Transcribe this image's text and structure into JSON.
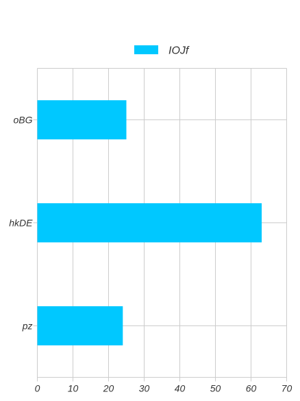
{
  "chart_data": {
    "type": "bar",
    "orientation": "horizontal",
    "categories": [
      "oBG",
      "hkDE",
      "pz"
    ],
    "series": [
      {
        "name": "IOJf",
        "values": [
          25,
          63,
          24
        ]
      }
    ],
    "title": "",
    "xlabel": "",
    "ylabel": "",
    "xlim": [
      0,
      70
    ],
    "xticks": [
      "0",
      "10",
      "20",
      "30",
      "40",
      "50",
      "60",
      "70"
    ],
    "grid": true,
    "legend_position": "top-center",
    "colors": {
      "series": "#00c8ff",
      "grid": "#cccccc",
      "text": "#333333"
    }
  }
}
